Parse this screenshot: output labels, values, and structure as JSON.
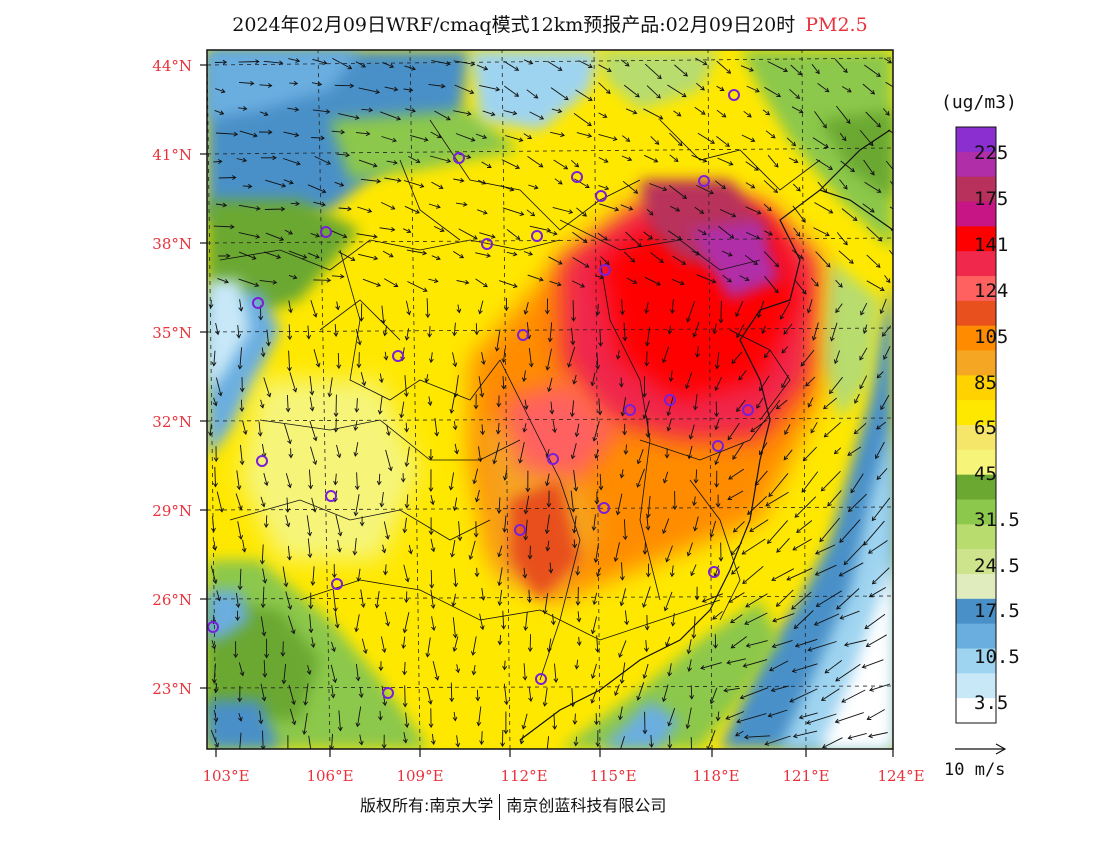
{
  "title": {
    "main": "2024年02月09日WRF/cmaq模式12km预报产品:02月09日20时",
    "pollutant": "PM2.5"
  },
  "axes": {
    "lat_labels": [
      "44°N",
      "41°N",
      "38°N",
      "35°N",
      "32°N",
      "29°N",
      "26°N",
      "23°N"
    ],
    "lon_labels": [
      "103°E",
      "106°E",
      "109°E",
      "112°E",
      "115°E",
      "118°E",
      "121°E",
      "124°E"
    ]
  },
  "colorbar": {
    "unit": "(ug/m3)",
    "labels": [
      "225",
      "175",
      "141",
      "124",
      "105",
      "85",
      "65",
      "45",
      "31.5",
      "24.5",
      "17.5",
      "10.5",
      "3.5"
    ],
    "colors": [
      "#8b2fd0",
      "#b02ea8",
      "#b8305c",
      "#c71585",
      "#ff0000",
      "#f0284c",
      "#ff6060",
      "#e8501e",
      "#ff8c00",
      "#f5a623",
      "#ffd200",
      "#ffe800",
      "#f5e66a",
      "#f6f57a",
      "#6aa832",
      "#8cc84b",
      "#b8dc6e",
      "#cde48c",
      "#e0ecbe",
      "#4a90c8",
      "#6aaee0",
      "#9fd4f0",
      "#c8e8f8",
      "#ffffff"
    ]
  },
  "wind_reference": "10 m/s",
  "copyright": {
    "left": "版权所有:南京大学",
    "right": "南京创蓝科技有限公司"
  }
}
